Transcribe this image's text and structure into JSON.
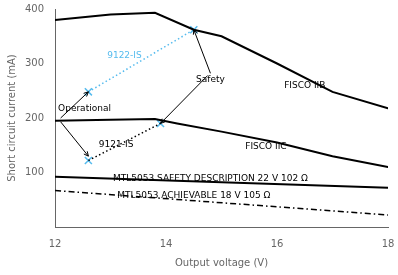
{
  "chart_data": {
    "type": "line",
    "x_label": "Output voltage (V)",
    "y_label": "Short circuit current (mA)",
    "xlim": [
      12,
      18
    ],
    "ylim": [
      0,
      400
    ],
    "xticks": [
      12,
      14,
      16,
      18
    ],
    "yticks": [
      100,
      200,
      300,
      400
    ],
    "grid": false,
    "series": [
      {
        "x": [
          12.0,
          13.0,
          13.8,
          14.5,
          15.0,
          16.0,
          17.0,
          18.0
        ],
        "values": [
          380,
          390,
          393,
          362,
          350,
          300,
          248,
          218
        ],
        "color": "black",
        "line_style": "solid",
        "marker": "none"
      },
      {
        "x": [
          12.0,
          13.0,
          13.8,
          14.2,
          15.0,
          16.0,
          17.0,
          18.0
        ],
        "values": [
          195,
          197,
          198,
          190,
          175,
          155,
          130,
          110
        ],
        "color": "black",
        "line_style": "solid",
        "marker": "none"
      },
      {
        "x": [
          12,
          18
        ],
        "values": [
          92,
          72
        ],
        "color": "black",
        "line_style": "solid",
        "marker": "none"
      },
      {
        "x": [
          12,
          18
        ],
        "values": [
          67,
          22
        ],
        "color": "black",
        "line_style": "dashdot",
        "marker": "none"
      },
      {
        "x": [
          12.6,
          14.5
        ],
        "values": [
          248,
          362
        ],
        "color": "#55bbee",
        "line_style": "dotted",
        "marker": "none"
      },
      {
        "x": [
          12.6,
          13.9
        ],
        "values": [
          122,
          190
        ],
        "color": "black",
        "line_style": "dotted",
        "marker": "none"
      },
      {
        "x": [
          12.6,
          14.5,
          12.6,
          13.9
        ],
        "values": [
          248,
          362,
          122,
          190
        ],
        "color": "#55bbee",
        "line_style": "none",
        "marker": "x"
      }
    ],
    "annotations": [
      {
        "text": "9122-IS",
        "x": 13.25,
        "y": 315,
        "color": "#55bbee"
      },
      {
        "text": "9121-IS",
        "x": 13.1,
        "y": 152,
        "color": "black"
      },
      {
        "text": "FISCO IIB",
        "x": 16.5,
        "y": 260,
        "color": "black"
      },
      {
        "text": "FISCO IIC",
        "x": 15.8,
        "y": 148,
        "color": "black"
      },
      {
        "text": "MTL5053 SAFETY DESCRIPTION 22 V 102 Ω",
        "x": 14.8,
        "y": 88,
        "color": "black"
      },
      {
        "text": "MTL5053 ACHIEVABLE 18 V 105 Ω",
        "x": 14.5,
        "y": 58,
        "color": "black"
      },
      {
        "text": "Safety",
        "x": 14.8,
        "y": 270,
        "color": "black"
      },
      {
        "text": "Operational",
        "x": 12.05,
        "y": 218,
        "color": "black"
      }
    ],
    "arrows": [
      {
        "from": [
          14.8,
          282
        ],
        "to": [
          14.5,
          362
        ]
      },
      {
        "from": [
          14.75,
          278
        ],
        "to": [
          13.9,
          190
        ]
      },
      {
        "from": [
          12.1,
          200
        ],
        "to": [
          12.6,
          248
        ]
      },
      {
        "from": [
          12.1,
          193
        ],
        "to": [
          12.6,
          130
        ]
      }
    ]
  }
}
